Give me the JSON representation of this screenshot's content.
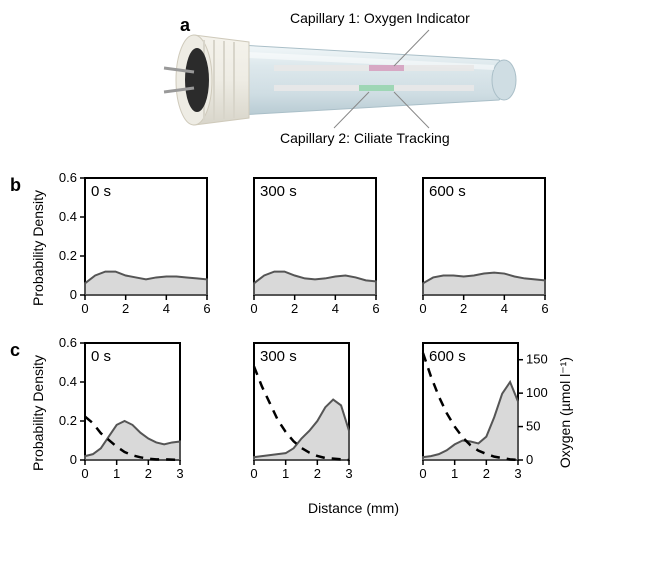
{
  "labels": {
    "a": "a",
    "b": "b",
    "c": "c",
    "cap1": "Capillary 1: Oxygen Indicator",
    "cap2": "Capillary 2: Ciliate Tracking",
    "ylabel": "Probability Density",
    "ylabel_right": "Oxygen (µmol l⁻¹)",
    "xlabel": "Distance (mm)",
    "t0": "0 s",
    "t300": "300 s",
    "t600": "600 s"
  },
  "colors": {
    "fill": "#d9d9d9",
    "stroke": "#555555",
    "oxygen_stroke": "#000000",
    "axis": "#000000",
    "tube_body": "#dde8ec",
    "tube_shine": "#f2f7f9",
    "cap_outer": "#eeece4",
    "cap_inner": "#2b2b2b",
    "pin": "#999999",
    "pink": "#d7a8c4",
    "green": "#9ed6b5"
  },
  "panel_b": {
    "width": 165,
    "height": 150,
    "xlim": [
      0,
      6
    ],
    "xticks": [
      0,
      2,
      4,
      6
    ],
    "ylim": [
      0,
      0.6
    ],
    "yticks": [
      0,
      0.2,
      0.4,
      0.6
    ],
    "series": [
      {
        "label": "0 s",
        "x": [
          0,
          0.5,
          1,
          1.5,
          2,
          2.5,
          3,
          3.5,
          4,
          4.5,
          5,
          5.5,
          6
        ],
        "y": [
          0.06,
          0.1,
          0.12,
          0.12,
          0.1,
          0.09,
          0.08,
          0.09,
          0.095,
          0.095,
          0.09,
          0.085,
          0.08
        ]
      },
      {
        "label": "300 s",
        "x": [
          0,
          0.5,
          1,
          1.5,
          2,
          2.5,
          3,
          3.5,
          4,
          4.5,
          5,
          5.5,
          6
        ],
        "y": [
          0.06,
          0.1,
          0.12,
          0.12,
          0.1,
          0.085,
          0.08,
          0.085,
          0.095,
          0.1,
          0.09,
          0.075,
          0.07
        ]
      },
      {
        "label": "600 s",
        "x": [
          0,
          0.5,
          1,
          1.5,
          2,
          2.5,
          3,
          3.5,
          4,
          4.5,
          5,
          5.5,
          6
        ],
        "y": [
          0.06,
          0.09,
          0.1,
          0.1,
          0.095,
          0.1,
          0.11,
          0.115,
          0.11,
          0.095,
          0.085,
          0.08,
          0.075
        ]
      }
    ]
  },
  "panel_c": {
    "width": 165,
    "height": 150,
    "xlim": [
      0,
      3
    ],
    "xticks": [
      0,
      1,
      2,
      3
    ],
    "ylim": [
      0,
      0.6
    ],
    "yticks": [
      0,
      0.2,
      0.4,
      0.6
    ],
    "ylim2": [
      0,
      175
    ],
    "yticks2": [
      0,
      50,
      100,
      150
    ],
    "series": [
      {
        "label": "0 s",
        "density": {
          "x": [
            0,
            0.25,
            0.5,
            0.75,
            1,
            1.25,
            1.5,
            1.75,
            2,
            2.25,
            2.5,
            2.75,
            3
          ],
          "y": [
            0.02,
            0.03,
            0.06,
            0.12,
            0.18,
            0.2,
            0.18,
            0.14,
            0.11,
            0.09,
            0.08,
            0.09,
            0.095
          ]
        },
        "oxygen": {
          "x": [
            0,
            0.25,
            0.5,
            0.75,
            1,
            1.25,
            1.5,
            1.75,
            2,
            2.25,
            2.5,
            2.75,
            3
          ],
          "y": [
            65,
            55,
            40,
            30,
            20,
            12,
            7,
            4,
            2,
            1,
            1,
            0.5,
            0
          ]
        }
      },
      {
        "label": "300 s",
        "density": {
          "x": [
            0,
            0.25,
            0.5,
            0.75,
            1,
            1.25,
            1.5,
            1.75,
            2,
            2.25,
            2.5,
            2.75,
            3
          ],
          "y": [
            0.015,
            0.02,
            0.025,
            0.03,
            0.035,
            0.06,
            0.11,
            0.15,
            0.2,
            0.27,
            0.31,
            0.28,
            0.15
          ]
        },
        "oxygen": {
          "x": [
            0,
            0.25,
            0.5,
            0.75,
            1,
            1.25,
            1.5,
            1.75,
            2,
            2.25,
            2.5,
            2.75,
            3
          ],
          "y": [
            140,
            110,
            85,
            60,
            42,
            28,
            18,
            11,
            6,
            3,
            2,
            1,
            0
          ]
        }
      },
      {
        "label": "600 s",
        "density": {
          "x": [
            0,
            0.25,
            0.5,
            0.75,
            1,
            1.25,
            1.5,
            1.75,
            2,
            2.25,
            2.5,
            2.75,
            3
          ],
          "y": [
            0.015,
            0.02,
            0.03,
            0.05,
            0.08,
            0.1,
            0.095,
            0.085,
            0.12,
            0.22,
            0.34,
            0.4,
            0.3
          ]
        },
        "oxygen": {
          "x": [
            0,
            0.25,
            0.5,
            0.75,
            1,
            1.25,
            1.5,
            1.75,
            2,
            2.25,
            2.5,
            2.75,
            3
          ],
          "y": [
            160,
            125,
            95,
            70,
            50,
            34,
            22,
            14,
            9,
            5,
            3,
            1,
            0
          ]
        }
      }
    ]
  }
}
